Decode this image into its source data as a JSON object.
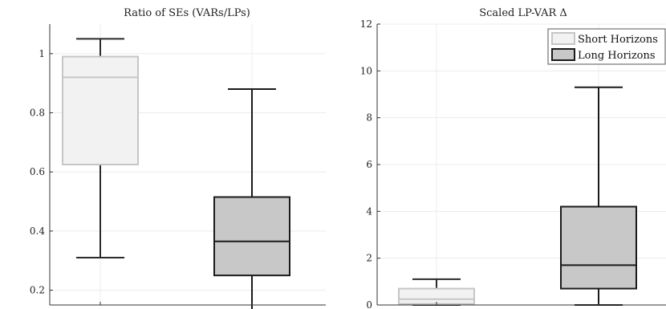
{
  "chart_data": [
    {
      "type": "box",
      "title": "Ratio of SEs (VARs/LPs)",
      "xlabel": "",
      "ylabel": "",
      "ylim": [
        0.15,
        1.1
      ],
      "yticks": [
        "0.2",
        "0.4",
        "0.6",
        "0.8",
        "1"
      ],
      "ytick_values": [
        0.2,
        0.4,
        0.6,
        0.8,
        1.0
      ],
      "grid": true,
      "boxes": [
        {
          "group": "Short Horizons",
          "whisker_low": 0.31,
          "q1": 0.625,
          "median": 0.92,
          "q3": 0.99,
          "whisker_high": 1.05
        },
        {
          "group": "Long Horizons",
          "whisker_low": 0.13,
          "q1": 0.25,
          "median": 0.365,
          "q3": 0.515,
          "whisker_high": 0.88
        }
      ]
    },
    {
      "type": "box",
      "title": "Scaled LP-VAR Δ",
      "xlabel": "",
      "ylabel": "",
      "ylim": [
        0,
        12
      ],
      "yticks": [
        "0",
        "2",
        "4",
        "6",
        "8",
        "10",
        "12"
      ],
      "ytick_values": [
        0,
        2,
        4,
        6,
        8,
        10,
        12
      ],
      "grid": true,
      "legend": {
        "position": "top-right",
        "entries": [
          "Short Horizons",
          "Long Horizons"
        ]
      },
      "boxes": [
        {
          "group": "Short Horizons",
          "whisker_low": 0.0,
          "q1": 0.05,
          "median": 0.25,
          "q3": 0.7,
          "whisker_high": 1.1
        },
        {
          "group": "Long Horizons",
          "whisker_low": 0.0,
          "q1": 0.7,
          "median": 1.7,
          "q3": 4.2,
          "whisker_high": 9.3
        }
      ]
    }
  ],
  "colors": {
    "short_fill": "#f2f2f2",
    "short_stroke": "#c6c6c6",
    "long_fill": "#c8c8c8",
    "long_stroke": "#1a1a1a",
    "whisker": "#2b2b2b",
    "grid": "#ececec",
    "axis": "#333333"
  }
}
